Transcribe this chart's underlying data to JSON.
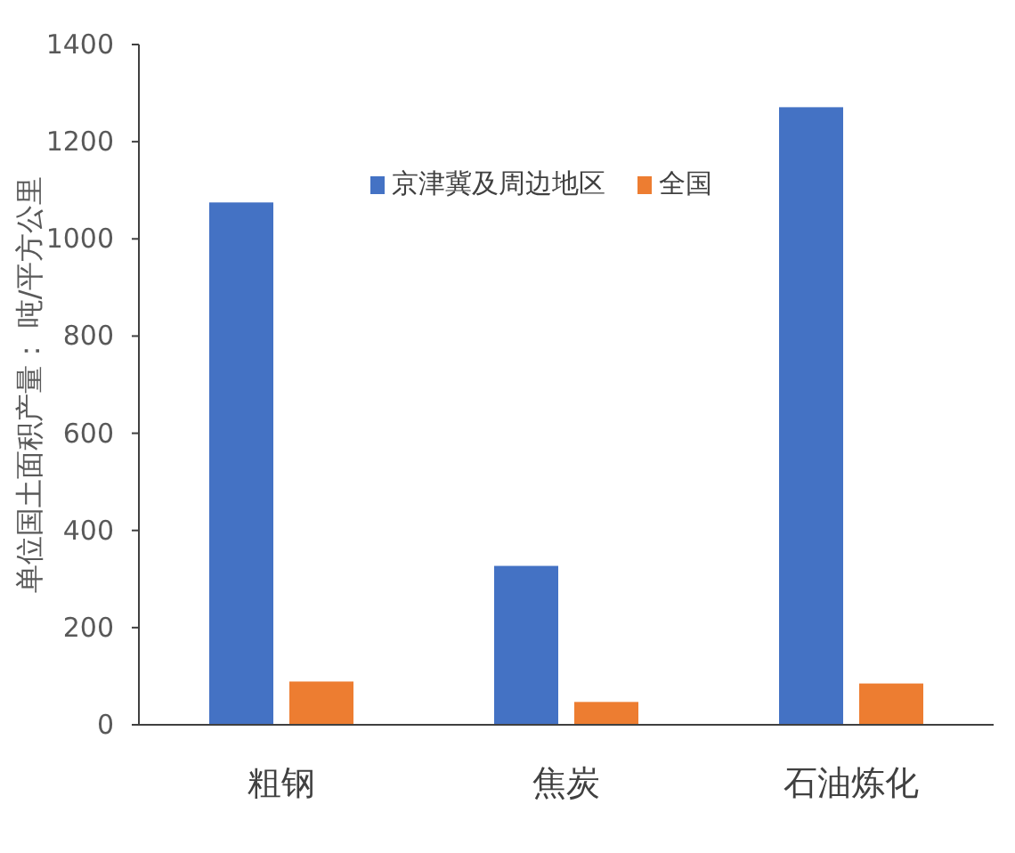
{
  "chart_data": {
    "type": "bar",
    "ylabel": "单位国土面积产量：  吨/平方公里",
    "categories": [
      "粗钢",
      "焦炭",
      "石油炼化"
    ],
    "series": [
      {
        "name": "京津冀及周边地区",
        "color": "#4472c4",
        "values": [
          1075,
          327,
          1271
        ]
      },
      {
        "name": "全国",
        "color": "#ed7d31",
        "values": [
          89,
          47,
          85
        ]
      }
    ],
    "ylim": [
      0,
      1400
    ],
    "yticks": [
      0,
      200,
      400,
      600,
      800,
      1000,
      1200,
      1400
    ],
    "grid": false,
    "legend": "top"
  }
}
